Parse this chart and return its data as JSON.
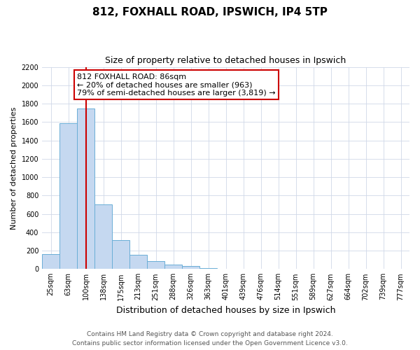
{
  "title": "812, FOXHALL ROAD, IPSWICH, IP4 5TP",
  "subtitle": "Size of property relative to detached houses in Ipswich",
  "xlabel": "Distribution of detached houses by size in Ipswich",
  "ylabel": "Number of detached properties",
  "bar_labels": [
    "25sqm",
    "63sqm",
    "100sqm",
    "138sqm",
    "175sqm",
    "213sqm",
    "251sqm",
    "288sqm",
    "326sqm",
    "363sqm",
    "401sqm",
    "439sqm",
    "476sqm",
    "514sqm",
    "551sqm",
    "589sqm",
    "627sqm",
    "664sqm",
    "702sqm",
    "739sqm",
    "777sqm"
  ],
  "bar_values": [
    160,
    1590,
    1750,
    700,
    315,
    155,
    85,
    50,
    30,
    10,
    0,
    0,
    0,
    0,
    0,
    0,
    0,
    0,
    0,
    0,
    0
  ],
  "bar_color": "#c5d8f0",
  "bar_edge_color": "#6aaed6",
  "vline_color": "#cc0000",
  "ylim": [
    0,
    2200
  ],
  "yticks": [
    0,
    200,
    400,
    600,
    800,
    1000,
    1200,
    1400,
    1600,
    1800,
    2000,
    2200
  ],
  "annotation_text": "812 FOXHALL ROAD: 86sqm\n← 20% of detached houses are smaller (963)\n79% of semi-detached houses are larger (3,819) →",
  "annotation_box_edge": "#cc0000",
  "footer_line1": "Contains HM Land Registry data © Crown copyright and database right 2024.",
  "footer_line2": "Contains public sector information licensed under the Open Government Licence v3.0.",
  "bg_color": "#ffffff",
  "grid_color": "#d0d8e8",
  "title_fontsize": 11,
  "subtitle_fontsize": 9,
  "ylabel_fontsize": 8,
  "xlabel_fontsize": 9,
  "tick_fontsize": 7,
  "annotation_fontsize": 8,
  "footer_fontsize": 6.5
}
